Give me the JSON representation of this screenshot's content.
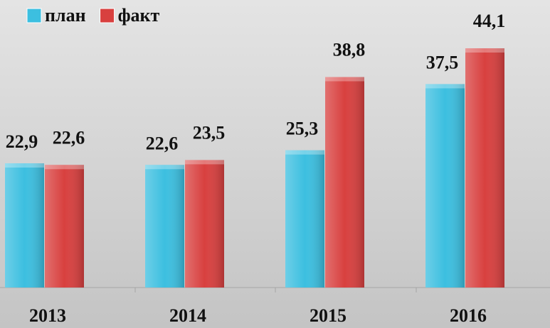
{
  "chart_data": {
    "type": "bar",
    "categories": [
      "2013",
      "2014",
      "2015",
      "2016"
    ],
    "series": [
      {
        "name": "план",
        "color": "#3cbfe0",
        "values": [
          22.9,
          22.6,
          25.3,
          37.5
        ],
        "value_labels": [
          "22,9",
          "22,6",
          "25,3",
          "37,5"
        ]
      },
      {
        "name": "факт",
        "color": "#d8403f",
        "values": [
          22.6,
          23.5,
          38.8,
          44.1
        ],
        "value_labels": [
          "22,6",
          "23,5",
          "38,8",
          "44,1"
        ]
      }
    ],
    "legend": "top-left"
  }
}
